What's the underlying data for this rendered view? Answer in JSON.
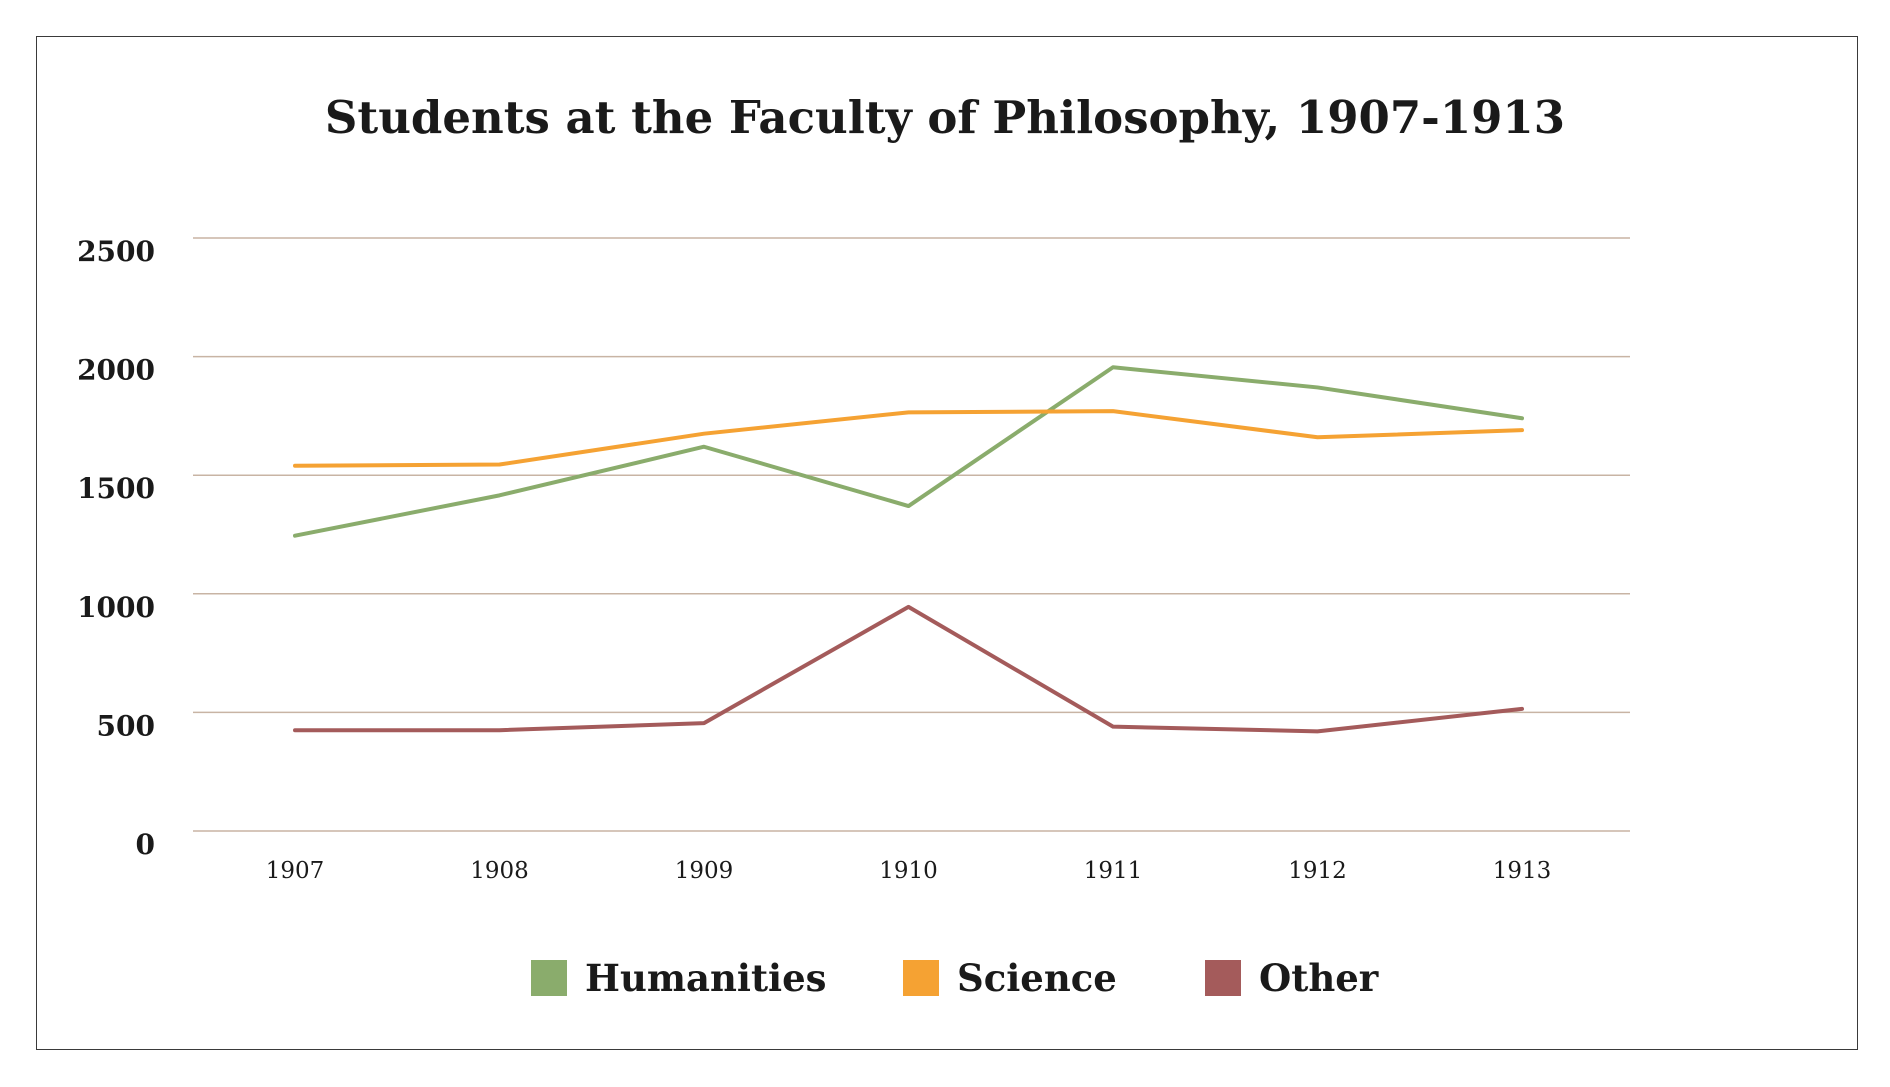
{
  "chart_data": {
    "type": "line",
    "title": "Students at the Faculty of Philosophy, 1907-1913",
    "xlabel": "",
    "ylabel": "",
    "categories": [
      "1907",
      "1908",
      "1909",
      "1910",
      "1911",
      "1912",
      "1913"
    ],
    "ylim": [
      0,
      2500
    ],
    "yticks": [
      "0",
      "500",
      "1000",
      "1500",
      "2000",
      "2500"
    ],
    "grid": true,
    "legend_position": "bottom",
    "series": [
      {
        "name": "Humanities",
        "color": "#8aac6c",
        "values": [
          1245,
          1415,
          1620,
          1370,
          1955,
          1870,
          1740
        ]
      },
      {
        "name": "Science",
        "color": "#f5a233",
        "values": [
          1540,
          1545,
          1675,
          1765,
          1770,
          1660,
          1690
        ]
      },
      {
        "name": "Other",
        "color": "#a45b5b",
        "values": [
          425,
          425,
          455,
          945,
          440,
          420,
          515
        ]
      }
    ]
  }
}
